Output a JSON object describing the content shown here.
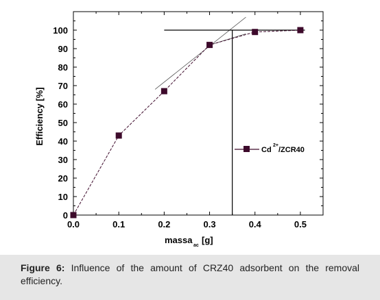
{
  "chart_data": {
    "type": "line",
    "xlabel": "massa",
    "xlabel_subscript": "ac",
    "xlabel_unit": "[g]",
    "ylabel": "Efficiency [%]",
    "xlim": [
      0.0,
      0.55
    ],
    "ylim": [
      0,
      100
    ],
    "x_ticks": [
      "0.0",
      "0.1",
      "0.2",
      "0.3",
      "0.4",
      "0.5"
    ],
    "y_ticks": [
      "0",
      "10",
      "20",
      "30",
      "40",
      "50",
      "60",
      "70",
      "80",
      "90",
      "100"
    ],
    "grid": false,
    "legend_position": "right",
    "legend": {
      "base": "Cd",
      "superscript": "2+",
      "rest": "/ZCR40"
    },
    "series": [
      {
        "name": "Cd2+/ZCR40",
        "color": "#3d0a2b",
        "marker": "square",
        "x": [
          0.0,
          0.1,
          0.2,
          0.3,
          0.4,
          0.5
        ],
        "y": [
          0,
          43,
          67,
          92,
          99,
          100
        ]
      }
    ],
    "guide_lines": {
      "tangent_1": [
        [
          0.18,
          68
        ],
        [
          0.38,
          107
        ]
      ],
      "tangent_2": [
        [
          0.3,
          92
        ],
        [
          0.38,
          98
        ]
      ],
      "plateau_y": 100,
      "plateau_x": [
        0.2,
        0.51
      ],
      "intersection_x": 0.35
    }
  },
  "caption": {
    "label": "Figure 6:",
    "text": " Influence of the amount of CRZ40 adsorbent on the removal efficiency."
  }
}
